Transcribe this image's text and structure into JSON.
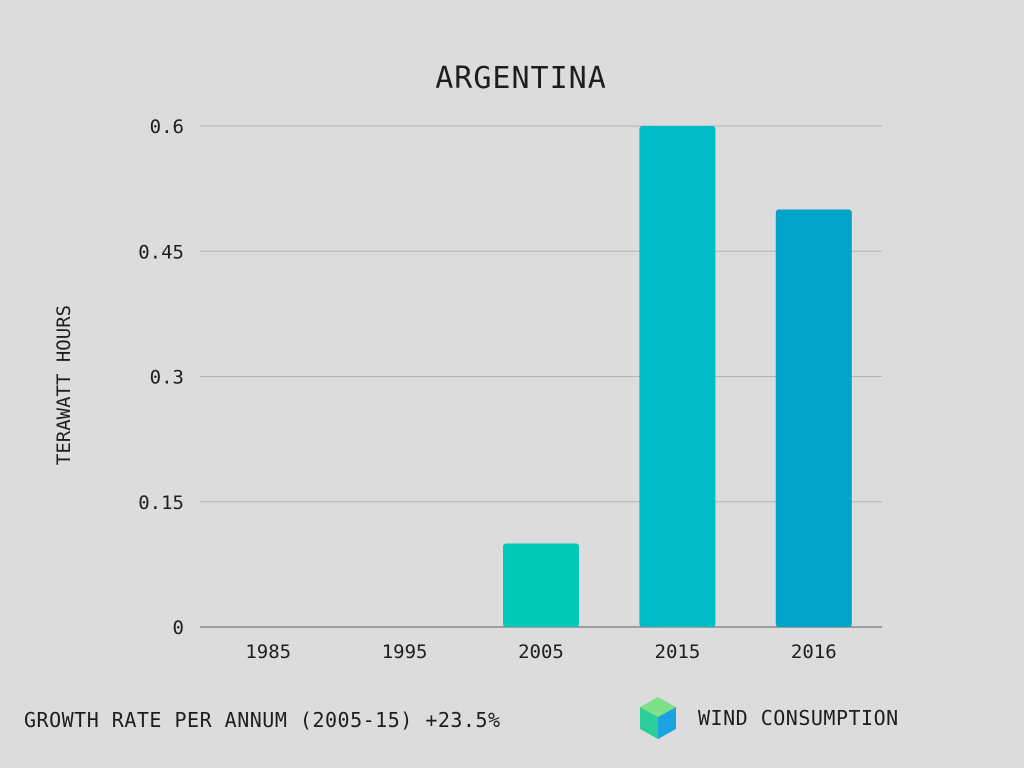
{
  "chart_data": {
    "type": "bar",
    "title": "ARGENTINA",
    "ylabel": "TERAWATT HOURS",
    "xlabel": "",
    "categories": [
      "1985",
      "1995",
      "2005",
      "2015",
      "2016"
    ],
    "values": [
      0,
      0,
      0.1,
      0.6,
      0.5
    ],
    "bar_colors": [
      "#00c9b5",
      "#00bcc8",
      "#00c9b5",
      "#00bcc8",
      "#00a3c8"
    ],
    "ylim": [
      0,
      0.6
    ],
    "yticks": [
      0,
      0.15,
      0.3,
      0.45,
      0.6
    ],
    "ytick_labels": [
      "0",
      "0.15",
      "0.3",
      "0.45",
      "0.6"
    ],
    "grid": true
  },
  "footer": {
    "growth_rate": "GROWTH RATE PER ANNUM (2005-15) +23.5%"
  },
  "legend": {
    "label": "WIND CONSUMPTION",
    "icon": "cube-icon",
    "colors": {
      "top": "#7fe08a",
      "left": "#2ccf9a",
      "right": "#1aa3e0"
    }
  }
}
